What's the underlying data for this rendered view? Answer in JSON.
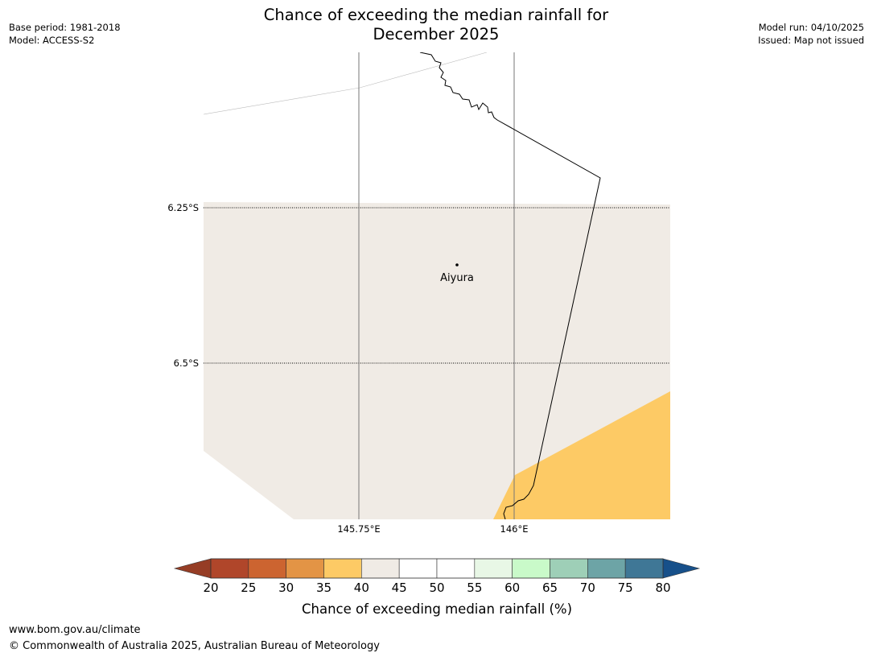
{
  "header": {
    "base_period": "Base period: 1981-2018",
    "model": "Model: ACCESS-S2",
    "title_line1": "Chance of exceeding the median rainfall for",
    "title_line2": "December 2025",
    "model_run": "Model run: 04/10/2025",
    "issued": "Issued: Map not issued"
  },
  "map": {
    "latitude_labels": [
      "6.25°S",
      "6.5°S"
    ],
    "longitude_labels": [
      "145.75°E",
      "146°E"
    ],
    "place": "Aiyura",
    "category_colors": {
      "35-40": "#fdca65",
      "40-45": "#f0ebe5"
    }
  },
  "colorbar": {
    "title": "Chance of exceeding median rainfall (%)",
    "ticks": [
      "20",
      "25",
      "30",
      "35",
      "40",
      "45",
      "50",
      "55",
      "60",
      "65",
      "70",
      "75",
      "80"
    ],
    "under_color": "#963d25",
    "over_color": "#17508a",
    "colors": [
      "#b0462a",
      "#cc6430",
      "#e39445",
      "#fdca65",
      "#f0ebe5",
      "#ffffff",
      "#ffffff",
      "#e8f7e6",
      "#c9fac9",
      "#9ecfb7",
      "#6da4a6",
      "#3f7796"
    ]
  },
  "footer": {
    "url": "www.bom.gov.au/climate",
    "copyright": "© Commonwealth of Australia 2025, Australian Bureau of Meteorology"
  }
}
